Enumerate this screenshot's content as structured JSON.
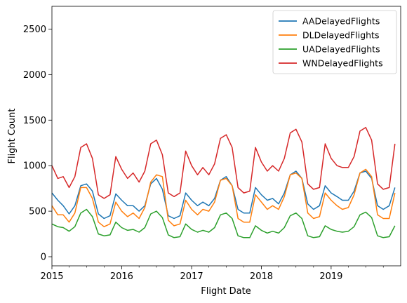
{
  "chart_data": {
    "type": "line",
    "title": "",
    "xlabel": "Flight Date",
    "ylabel": "Flight Count",
    "x_start": "2015-01-01",
    "x_end": "2019-12-31",
    "x_ticks": [
      {
        "date": "2015-01-01",
        "label": "2015"
      },
      {
        "date": "2016-01-01",
        "label": "2016"
      },
      {
        "date": "2017-01-01",
        "label": "2017"
      },
      {
        "date": "2018-01-01",
        "label": "2018"
      },
      {
        "date": "2019-01-01",
        "label": "2019"
      }
    ],
    "ylim": [
      -100,
      2750
    ],
    "y_ticks": [
      0,
      500,
      1000,
      1500,
      2000,
      2500
    ],
    "grid": false,
    "legend": "top-right",
    "series": [
      {
        "name": "AADelayedFlights",
        "color": "#1f77b4",
        "points": [
          [
            "2015-01-01",
            700
          ],
          [
            "2015-02-01",
            620
          ],
          [
            "2015-03-01",
            560
          ],
          [
            "2015-04-01",
            470
          ],
          [
            "2015-05-01",
            560
          ],
          [
            "2015-06-01",
            780
          ],
          [
            "2015-07-01",
            800
          ],
          [
            "2015-08-01",
            720
          ],
          [
            "2015-09-01",
            470
          ],
          [
            "2015-10-01",
            420
          ],
          [
            "2015-11-01",
            450
          ],
          [
            "2015-12-01",
            690
          ],
          [
            "2016-01-01",
            620
          ],
          [
            "2016-02-01",
            560
          ],
          [
            "2016-03-01",
            560
          ],
          [
            "2016-04-01",
            500
          ],
          [
            "2016-05-01",
            560
          ],
          [
            "2016-06-01",
            800
          ],
          [
            "2016-07-01",
            860
          ],
          [
            "2016-08-01",
            740
          ],
          [
            "2016-09-01",
            450
          ],
          [
            "2016-10-01",
            420
          ],
          [
            "2016-11-01",
            450
          ],
          [
            "2016-12-01",
            700
          ],
          [
            "2017-01-01",
            620
          ],
          [
            "2017-02-01",
            560
          ],
          [
            "2017-03-01",
            600
          ],
          [
            "2017-04-01",
            560
          ],
          [
            "2017-05-01",
            640
          ],
          [
            "2017-06-01",
            840
          ],
          [
            "2017-07-01",
            880
          ],
          [
            "2017-08-01",
            780
          ],
          [
            "2017-09-01",
            520
          ],
          [
            "2017-10-01",
            480
          ],
          [
            "2017-11-01",
            480
          ],
          [
            "2017-12-01",
            760
          ],
          [
            "2018-01-01",
            680
          ],
          [
            "2018-02-01",
            620
          ],
          [
            "2018-03-01",
            640
          ],
          [
            "2018-04-01",
            580
          ],
          [
            "2018-05-01",
            700
          ],
          [
            "2018-06-01",
            900
          ],
          [
            "2018-07-01",
            940
          ],
          [
            "2018-08-01",
            860
          ],
          [
            "2018-09-01",
            580
          ],
          [
            "2018-10-01",
            520
          ],
          [
            "2018-11-01",
            560
          ],
          [
            "2018-12-01",
            780
          ],
          [
            "2019-01-01",
            700
          ],
          [
            "2019-02-01",
            660
          ],
          [
            "2019-03-01",
            620
          ],
          [
            "2019-04-01",
            620
          ],
          [
            "2019-05-01",
            720
          ],
          [
            "2019-06-01",
            920
          ],
          [
            "2019-07-01",
            940
          ],
          [
            "2019-08-01",
            860
          ],
          [
            "2019-09-01",
            560
          ],
          [
            "2019-10-01",
            520
          ],
          [
            "2019-11-01",
            560
          ],
          [
            "2019-12-01",
            760
          ]
        ]
      },
      {
        "name": "DLDelayedFlights",
        "color": "#ff7f0e",
        "points": [
          [
            "2015-01-01",
            560
          ],
          [
            "2015-02-01",
            460
          ],
          [
            "2015-03-01",
            460
          ],
          [
            "2015-04-01",
            380
          ],
          [
            "2015-05-01",
            480
          ],
          [
            "2015-06-01",
            760
          ],
          [
            "2015-07-01",
            760
          ],
          [
            "2015-08-01",
            640
          ],
          [
            "2015-09-01",
            380
          ],
          [
            "2015-10-01",
            330
          ],
          [
            "2015-11-01",
            360
          ],
          [
            "2015-12-01",
            600
          ],
          [
            "2016-01-01",
            500
          ],
          [
            "2016-02-01",
            440
          ],
          [
            "2016-03-01",
            480
          ],
          [
            "2016-04-01",
            420
          ],
          [
            "2016-05-01",
            540
          ],
          [
            "2016-06-01",
            820
          ],
          [
            "2016-07-01",
            900
          ],
          [
            "2016-08-01",
            880
          ],
          [
            "2016-09-01",
            400
          ],
          [
            "2016-10-01",
            340
          ],
          [
            "2016-11-01",
            360
          ],
          [
            "2016-12-01",
            620
          ],
          [
            "2017-01-01",
            520
          ],
          [
            "2017-02-01",
            460
          ],
          [
            "2017-03-01",
            520
          ],
          [
            "2017-04-01",
            500
          ],
          [
            "2017-05-01",
            600
          ],
          [
            "2017-06-01",
            840
          ],
          [
            "2017-07-01",
            860
          ],
          [
            "2017-08-01",
            780
          ],
          [
            "2017-09-01",
            420
          ],
          [
            "2017-10-01",
            380
          ],
          [
            "2017-11-01",
            380
          ],
          [
            "2017-12-01",
            680
          ],
          [
            "2018-01-01",
            600
          ],
          [
            "2018-02-01",
            520
          ],
          [
            "2018-03-01",
            560
          ],
          [
            "2018-04-01",
            520
          ],
          [
            "2018-05-01",
            660
          ],
          [
            "2018-06-01",
            900
          ],
          [
            "2018-07-01",
            920
          ],
          [
            "2018-08-01",
            860
          ],
          [
            "2018-09-01",
            480
          ],
          [
            "2018-10-01",
            420
          ],
          [
            "2018-11-01",
            440
          ],
          [
            "2018-12-01",
            700
          ],
          [
            "2019-01-01",
            620
          ],
          [
            "2019-02-01",
            560
          ],
          [
            "2019-03-01",
            520
          ],
          [
            "2019-04-01",
            540
          ],
          [
            "2019-05-01",
            680
          ],
          [
            "2019-06-01",
            920
          ],
          [
            "2019-07-01",
            960
          ],
          [
            "2019-08-01",
            880
          ],
          [
            "2019-09-01",
            460
          ],
          [
            "2019-10-01",
            420
          ],
          [
            "2019-11-01",
            420
          ],
          [
            "2019-12-01",
            700
          ]
        ]
      },
      {
        "name": "UADelayedFlights",
        "color": "#2ca02c",
        "points": [
          [
            "2015-01-01",
            360
          ],
          [
            "2015-02-01",
            330
          ],
          [
            "2015-03-01",
            320
          ],
          [
            "2015-04-01",
            280
          ],
          [
            "2015-05-01",
            330
          ],
          [
            "2015-06-01",
            480
          ],
          [
            "2015-07-01",
            520
          ],
          [
            "2015-08-01",
            440
          ],
          [
            "2015-09-01",
            250
          ],
          [
            "2015-10-01",
            230
          ],
          [
            "2015-11-01",
            240
          ],
          [
            "2015-12-01",
            380
          ],
          [
            "2016-01-01",
            320
          ],
          [
            "2016-02-01",
            290
          ],
          [
            "2016-03-01",
            300
          ],
          [
            "2016-04-01",
            270
          ],
          [
            "2016-05-01",
            320
          ],
          [
            "2016-06-01",
            470
          ],
          [
            "2016-07-01",
            500
          ],
          [
            "2016-08-01",
            430
          ],
          [
            "2016-09-01",
            240
          ],
          [
            "2016-10-01",
            210
          ],
          [
            "2016-11-01",
            220
          ],
          [
            "2016-12-01",
            360
          ],
          [
            "2017-01-01",
            300
          ],
          [
            "2017-02-01",
            270
          ],
          [
            "2017-03-01",
            290
          ],
          [
            "2017-04-01",
            270
          ],
          [
            "2017-05-01",
            320
          ],
          [
            "2017-06-01",
            460
          ],
          [
            "2017-07-01",
            480
          ],
          [
            "2017-08-01",
            420
          ],
          [
            "2017-09-01",
            230
          ],
          [
            "2017-10-01",
            210
          ],
          [
            "2017-11-01",
            210
          ],
          [
            "2017-12-01",
            340
          ],
          [
            "2018-01-01",
            290
          ],
          [
            "2018-02-01",
            260
          ],
          [
            "2018-03-01",
            280
          ],
          [
            "2018-04-01",
            260
          ],
          [
            "2018-05-01",
            320
          ],
          [
            "2018-06-01",
            450
          ],
          [
            "2018-07-01",
            480
          ],
          [
            "2018-08-01",
            420
          ],
          [
            "2018-09-01",
            230
          ],
          [
            "2018-10-01",
            210
          ],
          [
            "2018-11-01",
            220
          ],
          [
            "2018-12-01",
            340
          ],
          [
            "2019-01-01",
            300
          ],
          [
            "2019-02-01",
            280
          ],
          [
            "2019-03-01",
            270
          ],
          [
            "2019-04-01",
            280
          ],
          [
            "2019-05-01",
            330
          ],
          [
            "2019-06-01",
            460
          ],
          [
            "2019-07-01",
            490
          ],
          [
            "2019-08-01",
            430
          ],
          [
            "2019-09-01",
            230
          ],
          [
            "2019-10-01",
            210
          ],
          [
            "2019-11-01",
            220
          ],
          [
            "2019-12-01",
            340
          ]
        ]
      },
      {
        "name": "WNDelayedFlights",
        "color": "#d62728",
        "points": [
          [
            "2015-01-01",
            1000
          ],
          [
            "2015-02-01",
            860
          ],
          [
            "2015-03-01",
            880
          ],
          [
            "2015-04-01",
            760
          ],
          [
            "2015-05-01",
            880
          ],
          [
            "2015-06-01",
            1200
          ],
          [
            "2015-07-01",
            1240
          ],
          [
            "2015-08-01",
            1080
          ],
          [
            "2015-09-01",
            680
          ],
          [
            "2015-10-01",
            640
          ],
          [
            "2015-11-01",
            680
          ],
          [
            "2015-12-01",
            1100
          ],
          [
            "2016-01-01",
            960
          ],
          [
            "2016-02-01",
            860
          ],
          [
            "2016-03-01",
            920
          ],
          [
            "2016-04-01",
            820
          ],
          [
            "2016-05-01",
            940
          ],
          [
            "2016-06-01",
            1240
          ],
          [
            "2016-07-01",
            1280
          ],
          [
            "2016-08-01",
            1120
          ],
          [
            "2016-09-01",
            700
          ],
          [
            "2016-10-01",
            660
          ],
          [
            "2016-11-01",
            700
          ],
          [
            "2016-12-01",
            1160
          ],
          [
            "2017-01-01",
            1000
          ],
          [
            "2017-02-01",
            900
          ],
          [
            "2017-03-01",
            980
          ],
          [
            "2017-04-01",
            900
          ],
          [
            "2017-05-01",
            1020
          ],
          [
            "2017-06-01",
            1300
          ],
          [
            "2017-07-01",
            1340
          ],
          [
            "2017-08-01",
            1200
          ],
          [
            "2017-09-01",
            760
          ],
          [
            "2017-10-01",
            700
          ],
          [
            "2017-11-01",
            720
          ],
          [
            "2017-12-01",
            1200
          ],
          [
            "2018-01-01",
            1040
          ],
          [
            "2018-02-01",
            940
          ],
          [
            "2018-03-01",
            1000
          ],
          [
            "2018-04-01",
            940
          ],
          [
            "2018-05-01",
            1080
          ],
          [
            "2018-06-01",
            1360
          ],
          [
            "2018-07-01",
            1400
          ],
          [
            "2018-08-01",
            1260
          ],
          [
            "2018-09-01",
            800
          ],
          [
            "2018-10-01",
            740
          ],
          [
            "2018-11-01",
            760
          ],
          [
            "2018-12-01",
            1240
          ],
          [
            "2019-01-01",
            1080
          ],
          [
            "2019-02-01",
            1000
          ],
          [
            "2019-03-01",
            980
          ],
          [
            "2019-04-01",
            980
          ],
          [
            "2019-05-01",
            1100
          ],
          [
            "2019-06-01",
            1380
          ],
          [
            "2019-07-01",
            1420
          ],
          [
            "2019-08-01",
            1280
          ],
          [
            "2019-09-01",
            800
          ],
          [
            "2019-10-01",
            740
          ],
          [
            "2019-11-01",
            760
          ],
          [
            "2019-12-01",
            1240
          ]
        ]
      }
    ]
  }
}
